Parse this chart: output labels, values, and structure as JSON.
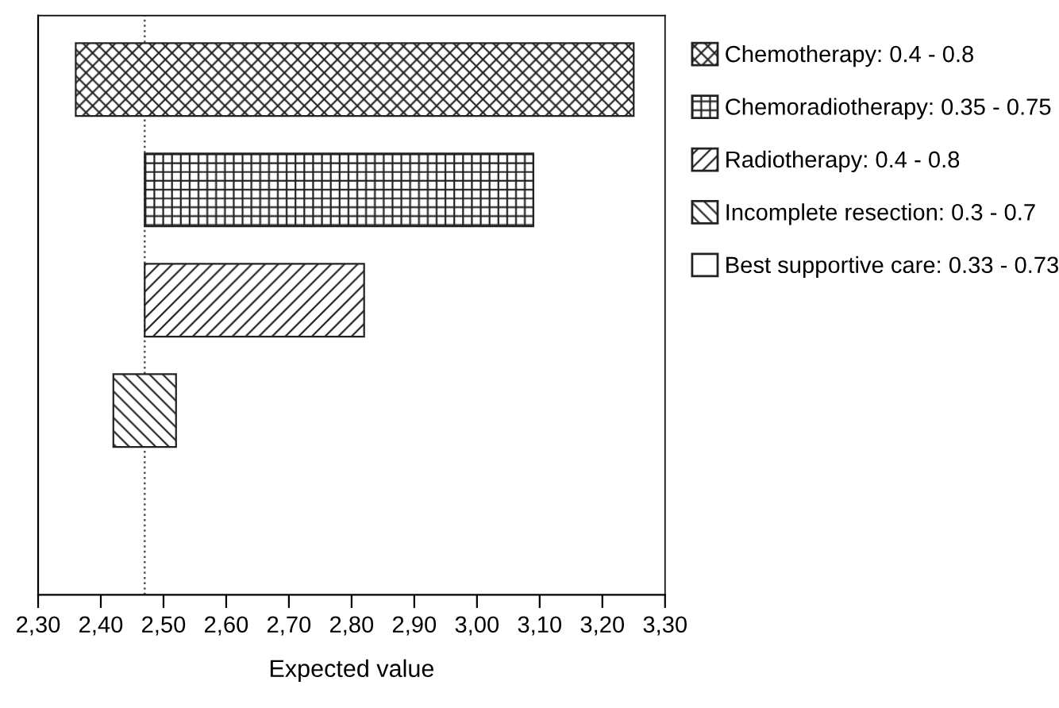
{
  "chart_data": {
    "type": "bar",
    "orientation": "horizontal",
    "xlabel": "Expected value",
    "categories": [
      null,
      null,
      null,
      null,
      null
    ],
    "series": [
      {
        "name": "Chemotherapy: 0.4 - 0.8",
        "color": "#222222",
        "base": [
          2.36,
          null,
          null,
          null,
          null
        ],
        "values": [
          0.89,
          null,
          null,
          null,
          null
        ]
      },
      {
        "name": "Chemoradiotherapy: 0.35 - 0.75",
        "color": "#222222",
        "base": [
          null,
          2.47,
          null,
          null,
          null
        ],
        "values": [
          null,
          0.62,
          null,
          null,
          null
        ]
      },
      {
        "name": "Radiotherapy: 0.4 - 0.8",
        "color": "#222222",
        "base": [
          null,
          null,
          2.47,
          null,
          null
        ],
        "values": [
          null,
          null,
          0.35,
          null,
          null
        ]
      },
      {
        "name": "Incomplete resection: 0.3 - 0.7",
        "color": "#222222",
        "base": [
          null,
          null,
          null,
          2.42,
          null
        ],
        "values": [
          null,
          null,
          null,
          0.1,
          null
        ]
      },
      {
        "name": "Best supportive care: 0.33 - 0.73",
        "color": "#222222",
        "values": [
          null,
          null,
          null,
          null,
          null
        ]
      }
    ],
    "xlim": [
      2.3,
      3.3
    ],
    "xticks": [
      {
        "value": 2.3,
        "label": "2,30"
      },
      {
        "value": 2.4,
        "label": "2,40"
      },
      {
        "value": 2.5,
        "label": "2,50"
      },
      {
        "value": 2.6,
        "label": "2,60"
      },
      {
        "value": 2.7,
        "label": "2,70"
      },
      {
        "value": 2.8,
        "label": "2,80"
      },
      {
        "value": 2.9,
        "label": "2,90"
      },
      {
        "value": 3.0,
        "label": "3,00"
      },
      {
        "value": 3.1,
        "label": "3,10"
      },
      {
        "value": 3.2,
        "label": "3,20"
      },
      {
        "value": 3.3,
        "label": "3,30"
      }
    ],
    "ref_lines": [
      {
        "axis": "x",
        "value": 2.47,
        "line_style": "dotted",
        "color": "#555555"
      }
    ],
    "tick_labels": "x",
    "legend": "right",
    "grid": false
  }
}
